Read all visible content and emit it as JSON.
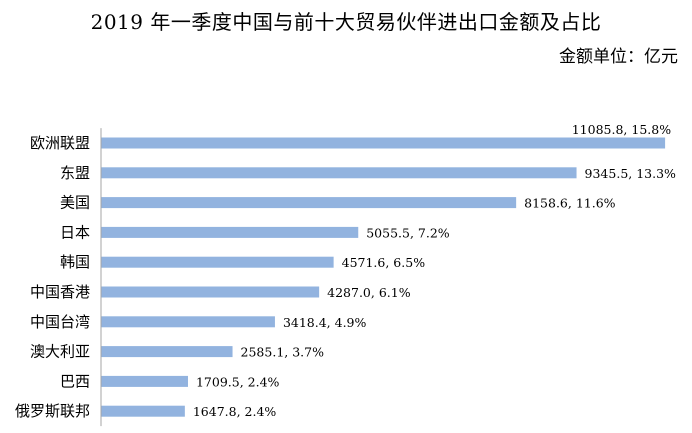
{
  "chart_data": {
    "type": "bar",
    "orientation": "horizontal",
    "title": "2019 年一季度中国与前十大贸易伙伴进出口金额及占比",
    "unit_label": "金额单位：亿元",
    "categories": [
      "欧洲联盟",
      "东盟",
      "美国",
      "日本",
      "韩国",
      "中国香港",
      "中国台湾",
      "澳大利亚",
      "巴西",
      "俄罗斯联邦"
    ],
    "values": [
      11085.8,
      9345.5,
      8158.6,
      5055.5,
      4571.6,
      4287.0,
      3418.4,
      2585.1,
      1709.5,
      1647.8
    ],
    "data_labels": [
      "11085.8, 15.8%",
      "9345.5, 13.3%",
      "8158.6, 11.6%",
      "5055.5, 7.2%",
      "4571.6, 6.5%",
      "4287.0, 6.1%",
      "3418.4, 4.9%",
      "2585.1, 3.7%",
      "1709.5, 2.4%",
      "1647.8, 2.4%"
    ],
    "xlim": [
      0,
      11300
    ],
    "grid": false,
    "legend": "none",
    "bar_color": "#92B3DF",
    "axis_color": "#A6A6A6"
  }
}
